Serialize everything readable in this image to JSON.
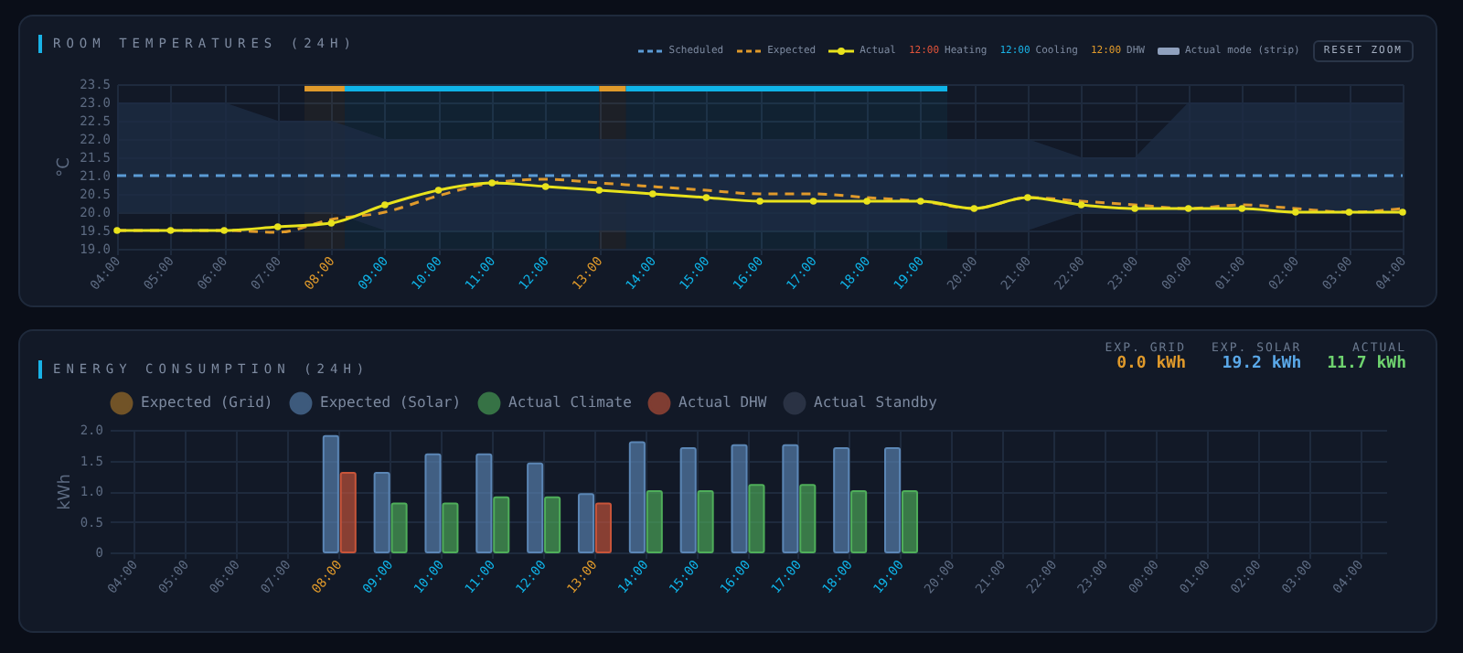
{
  "chart_data": [
    {
      "type": "line",
      "title": "ROOM TEMPERATURES (24H)",
      "ylabel": "°C",
      "legend": "top right",
      "grid": true,
      "x": [
        "--01-01T04:00",
        "--01-01T05:00",
        "--01-01T06:00",
        "--01-01T07:00",
        "--01-01T08:00",
        "--01-01T09:00",
        "--01-01T10:00",
        "--01-01T11:00",
        "--01-01T12:00",
        "--01-01T13:00",
        "--01-01T14:00",
        "--01-01T15:00",
        "--01-01T16:00",
        "--01-01T17:00",
        "--01-01T18:00",
        "--01-01T19:00",
        "--01-01T20:00",
        "--01-01T21:00",
        "--01-01T22:00",
        "--01-01T23:00",
        "--01-02T00:00",
        "--01-02T01:00",
        "--01-02T02:00",
        "--01-02T03:00",
        "--01-02T04:00"
      ],
      "xlim": [
        "--01-01T04:00",
        "--01-02T04:00"
      ],
      "xticks": [
        {
          "value": "--01-01T04:00",
          "label": "04:00"
        },
        {
          "value": "--01-01T05:00",
          "label": "05:00"
        },
        {
          "value": "--01-01T06:00",
          "label": "06:00"
        },
        {
          "value": "--01-01T07:00",
          "label": "07:00"
        },
        {
          "value": "--01-01T08:00",
          "label": "08:00"
        },
        {
          "value": "--01-01T09:00",
          "label": "09:00"
        },
        {
          "value": "--01-01T10:00",
          "label": "10:00"
        },
        {
          "value": "--01-01T11:00",
          "label": "11:00"
        },
        {
          "value": "--01-01T12:00",
          "label": "12:00"
        },
        {
          "value": "--01-01T13:00",
          "label": "13:00"
        },
        {
          "value": "--01-01T14:00",
          "label": "14:00"
        },
        {
          "value": "--01-01T15:00",
          "label": "15:00"
        },
        {
          "value": "--01-01T16:00",
          "label": "16:00"
        },
        {
          "value": "--01-01T17:00",
          "label": "17:00"
        },
        {
          "value": "--01-01T18:00",
          "label": "18:00"
        },
        {
          "value": "--01-01T19:00",
          "label": "19:00"
        },
        {
          "value": "--01-01T20:00",
          "label": "20:00"
        },
        {
          "value": "--01-01T21:00",
          "label": "21:00"
        },
        {
          "value": "--01-01T22:00",
          "label": "22:00"
        },
        {
          "value": "--01-01T23:00",
          "label": "23:00"
        },
        {
          "value": "--01-02T00:00",
          "label": "00:00"
        },
        {
          "value": "--01-02T01:00",
          "label": "01:00"
        },
        {
          "value": "--01-02T02:00",
          "label": "02:00"
        },
        {
          "value": "--01-02T03:00",
          "label": "03:00"
        },
        {
          "value": "--01-02T04:00",
          "label": "04:00"
        }
      ],
      "ylim": [
        19,
        23.5
      ],
      "yticks": [
        {
          "value": 19,
          "label": "19.0"
        },
        19.5,
        {
          "value": 20,
          "label": "20.0"
        },
        20.5,
        {
          "value": 21,
          "label": "21.0"
        },
        21.5,
        {
          "value": 22,
          "label": "22.0"
        },
        22.5,
        {
          "value": 23,
          "label": "23.0"
        },
        23.5
      ],
      "series": [
        {
          "name": "Scheduled",
          "color": "#5b9bd5",
          "line_style": "dashed",
          "values": [
            21,
            21,
            21,
            21,
            21,
            21,
            21,
            21,
            21,
            21,
            21,
            21,
            21,
            21,
            21,
            21,
            21,
            21,
            21,
            21,
            21,
            21,
            21,
            21,
            21
          ],
          "lower": [
            20,
            20,
            20,
            20,
            20,
            19.5,
            19.5,
            19.5,
            19.5,
            19.5,
            19.5,
            19.5,
            19.5,
            19.5,
            19.5,
            19.5,
            19.5,
            19.5,
            20,
            20,
            20,
            20,
            20,
            20,
            20
          ],
          "upper": [
            23,
            23,
            23,
            22.5,
            22.5,
            22,
            22,
            22,
            22,
            22,
            22,
            22,
            22,
            22,
            22,
            22,
            22,
            22,
            21.5,
            21.5,
            23,
            23,
            23,
            23,
            23
          ]
        },
        {
          "name": "Expected",
          "color": "#e09a2b",
          "line_style": "dashed",
          "values": [
            19.5,
            19.5,
            19.5,
            19.45,
            19.8,
            20,
            20.45,
            20.8,
            20.9,
            20.8,
            20.7,
            20.6,
            20.5,
            20.5,
            20.4,
            20.3,
            20.1,
            20.4,
            20.3,
            20.2,
            20.1,
            20.2,
            20.1,
            20,
            20.1
          ]
        },
        {
          "name": "Actual",
          "color": "#e8e21c",
          "marker": "circle",
          "values": [
            19.5,
            19.5,
            19.5,
            19.6,
            19.7,
            20.2,
            20.6,
            20.8,
            20.7,
            20.6,
            20.5,
            20.4,
            20.3,
            20.3,
            20.3,
            20.3,
            20.1,
            20.4,
            20.2,
            20.1,
            20.1,
            20.1,
            20,
            20,
            20
          ]
        }
      ],
      "bands": [
        {
          "axis": "x",
          "from": "--01-01T07:30",
          "to": "--01-01T08:15",
          "color": "#e09a2b"
        },
        {
          "axis": "x",
          "from": "--01-01T08:15",
          "to": "--01-01T13:00",
          "color": "#0fb4e8"
        },
        {
          "axis": "x",
          "from": "--01-01T13:00",
          "to": "--01-01T13:30",
          "color": "#e09a2b"
        },
        {
          "axis": "x",
          "from": "--01-01T13:30",
          "to": "--01-01T19:30",
          "color": "#0fb4e8"
        }
      ],
      "annotations": [
        "12:00 Heating",
        "12:00 Cooling",
        "12:00 DHW",
        "Actual mode (strip)",
        "RESET ZOOM"
      ]
    },
    {
      "type": "bar",
      "title": "ENERGY CONSUMPTION (24H)",
      "ylabel": "kWh",
      "legend": "top",
      "grid": true,
      "categories": [
        "04:00",
        "05:00",
        "06:00",
        "07:00",
        "08:00",
        "09:00",
        "10:00",
        "11:00",
        "12:00",
        "13:00",
        "14:00",
        "15:00",
        "16:00",
        "17:00",
        "18:00",
        "19:00",
        "20:00",
        "21:00",
        "22:00",
        "23:00",
        "00:00",
        "01:00",
        "02:00",
        "03:00",
        "04:00"
      ],
      "ylim": [
        0,
        2
      ],
      "yticks": [
        {
          "value": 0,
          "label": "0"
        },
        0.5,
        {
          "value": 1,
          "label": "1.0"
        },
        1.5,
        {
          "value": 2,
          "label": "2.0"
        }
      ],
      "series": [
        {
          "name": "Expected (Grid)",
          "color": "#b07a28",
          "values": [
            null,
            null,
            null,
            null,
            null,
            null,
            null,
            null,
            null,
            null,
            null,
            null,
            null,
            null,
            null,
            null,
            null,
            null,
            null,
            null,
            null,
            null,
            null,
            null,
            null
          ]
        },
        {
          "name": "Expected (Solar)",
          "color": "#5b86b5",
          "values": [
            null,
            null,
            null,
            null,
            1.9,
            1.3,
            1.6,
            1.6,
            1.45,
            0.95,
            1.8,
            1.7,
            1.75,
            1.75,
            1.7,
            1.7,
            null,
            null,
            null,
            null,
            null,
            null,
            null,
            null,
            null
          ]
        },
        {
          "name": "Actual Climate",
          "color": "#4fae5a",
          "values": [
            null,
            null,
            null,
            null,
            null,
            0.8,
            0.8,
            0.9,
            0.9,
            null,
            1,
            1,
            1.1,
            1.1,
            1,
            1,
            null,
            null,
            null,
            null,
            null,
            null,
            null,
            null,
            null
          ]
        },
        {
          "name": "Actual DHW",
          "color": "#c8553a",
          "values": [
            null,
            null,
            null,
            null,
            1.3,
            null,
            null,
            null,
            null,
            0.8,
            null,
            null,
            null,
            null,
            null,
            null,
            null,
            null,
            null,
            null,
            null,
            null,
            null,
            null,
            null
          ]
        },
        {
          "name": "Actual Standby",
          "color": "#3a4458",
          "values": [
            null,
            null,
            null,
            null,
            null,
            null,
            null,
            null,
            null,
            null,
            null,
            null,
            null,
            null,
            null,
            null,
            null,
            null,
            null,
            null,
            null,
            null,
            null,
            null,
            null
          ]
        }
      ],
      "annotations": [
        "EXP. GRID",
        "0.0 kWh",
        "EXP. SOLAR",
        "19.2 kWh",
        "ACTUAL",
        "11.7 kWh"
      ]
    }
  ]
}
